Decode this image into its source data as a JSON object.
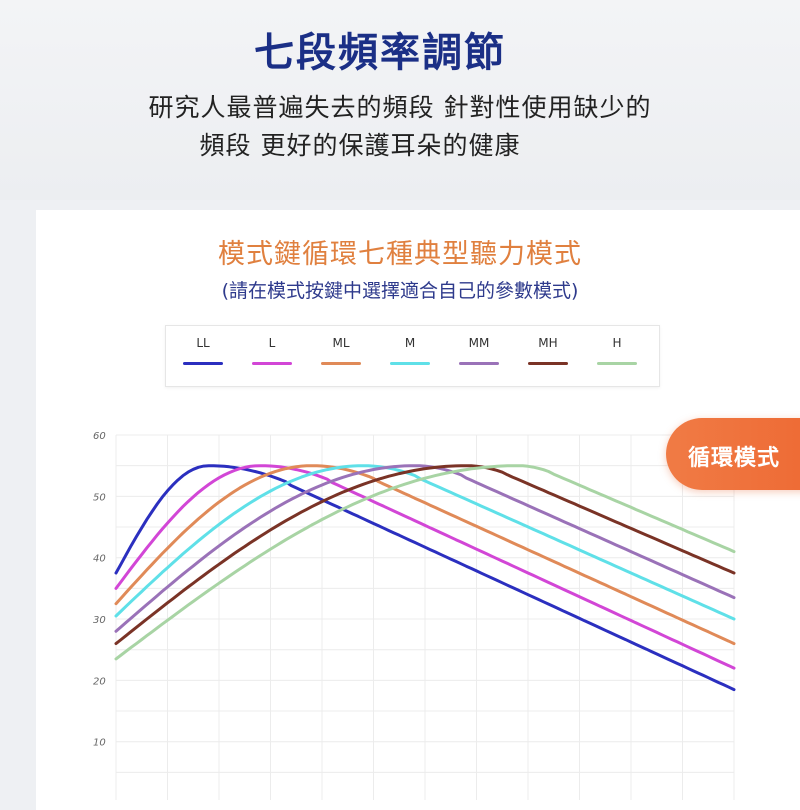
{
  "header": {
    "title": "七段頻率調節",
    "description_line1": "研究人最普遍失去的頻段 針對性使用缺少的",
    "description_line2": "頻段  更好的保護耳朵的健康"
  },
  "card": {
    "title": "模式鍵循環七種典型聽力模式",
    "subtitle": "(請在模式按鍵中選擇適合自己的參數模式)"
  },
  "badge": {
    "label": "循環模式"
  },
  "chart_data": {
    "type": "line",
    "title": "",
    "xlabel": "",
    "ylabel": "",
    "ylim": [
      0,
      60
    ],
    "yticks": [
      10,
      20,
      30,
      40,
      50,
      60
    ],
    "xlim": [
      0,
      12
    ],
    "grid": true,
    "legend_position": "top",
    "series": [
      {
        "name": "LL",
        "color": "#2b2fbf",
        "points": [
          [
            0,
            37.5
          ],
          [
            1.8,
            55
          ],
          [
            12,
            18.5
          ]
        ]
      },
      {
        "name": "L",
        "color": "#d246d6",
        "points": [
          [
            0,
            35
          ],
          [
            2.8,
            55
          ],
          [
            12,
            22
          ]
        ]
      },
      {
        "name": "ML",
        "color": "#e08a58",
        "points": [
          [
            0,
            32.5
          ],
          [
            3.8,
            55
          ],
          [
            12,
            26
          ]
        ]
      },
      {
        "name": "M",
        "color": "#5fe0e8",
        "points": [
          [
            0,
            30.5
          ],
          [
            4.8,
            55
          ],
          [
            12,
            30
          ]
        ]
      },
      {
        "name": "MM",
        "color": "#9a72b8",
        "points": [
          [
            0,
            28
          ],
          [
            5.8,
            55
          ],
          [
            12,
            33.5
          ]
        ]
      },
      {
        "name": "MH",
        "color": "#7a3326",
        "points": [
          [
            0,
            26
          ],
          [
            6.8,
            55
          ],
          [
            12,
            37.5
          ]
        ]
      },
      {
        "name": "H",
        "color": "#a8d4a4",
        "points": [
          [
            0,
            23.5
          ],
          [
            7.8,
            55
          ],
          [
            12,
            41
          ]
        ]
      }
    ]
  }
}
